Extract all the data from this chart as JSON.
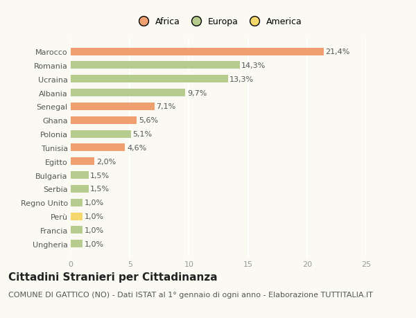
{
  "categories": [
    "Ungheria",
    "Francia",
    "Perù",
    "Regno Unito",
    "Serbia",
    "Bulgaria",
    "Egitto",
    "Tunisia",
    "Polonia",
    "Ghana",
    "Senegal",
    "Albania",
    "Ucraina",
    "Romania",
    "Marocco"
  ],
  "values": [
    1.0,
    1.0,
    1.0,
    1.0,
    1.5,
    1.5,
    2.0,
    4.6,
    5.1,
    5.6,
    7.1,
    9.7,
    13.3,
    14.3,
    21.4
  ],
  "labels": [
    "1,0%",
    "1,0%",
    "1,0%",
    "1,0%",
    "1,5%",
    "1,5%",
    "2,0%",
    "4,6%",
    "5,1%",
    "5,6%",
    "7,1%",
    "9,7%",
    "13,3%",
    "14,3%",
    "21,4%"
  ],
  "colors": [
    "#b5cc8e",
    "#b5cc8e",
    "#f5d76e",
    "#b5cc8e",
    "#b5cc8e",
    "#b5cc8e",
    "#f0a070",
    "#f0a070",
    "#b5cc8e",
    "#f0a070",
    "#f0a070",
    "#b5cc8e",
    "#b5cc8e",
    "#b5cc8e",
    "#f0a070"
  ],
  "legend_labels": [
    "Africa",
    "Europa",
    "America"
  ],
  "legend_colors": [
    "#f0a070",
    "#b5cc8e",
    "#f5d76e"
  ],
  "title": "Cittadini Stranieri per Cittadinanza",
  "subtitle": "COMUNE DI GATTICO (NO) - Dati ISTAT al 1° gennaio di ogni anno - Elaborazione TUTTITALIA.IT",
  "xlim": [
    0,
    25
  ],
  "xticks": [
    0,
    5,
    10,
    15,
    20,
    25
  ],
  "background_color": "#fafaf2",
  "grid_color": "#ffffff",
  "bar_height": 0.55,
  "label_fontsize": 8,
  "ytick_fontsize": 8,
  "xtick_fontsize": 8,
  "title_fontsize": 11,
  "subtitle_fontsize": 8,
  "legend_fontsize": 9
}
